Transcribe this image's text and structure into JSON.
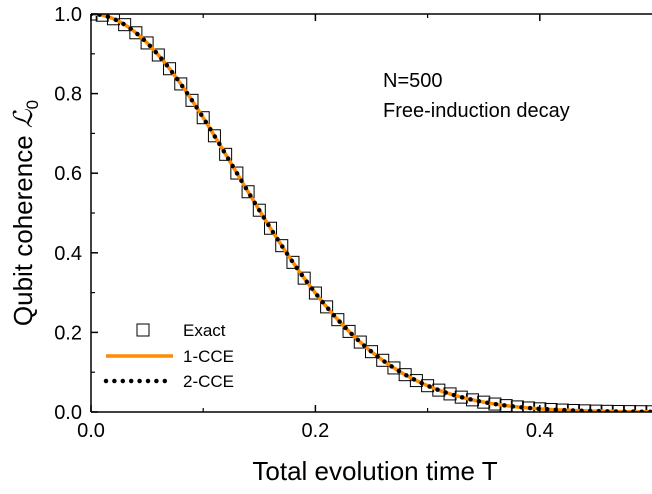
{
  "chart_data": {
    "type": "line",
    "xlabel": "Total evolution time T",
    "ylabel_text": "Qubit coherence ",
    "ylabel_symbol": "ℒ",
    "ylabel_subscript": "0",
    "xlim": [
      0,
      0.5
    ],
    "ylim": [
      0,
      1.0
    ],
    "x_ticks": [
      {
        "value": 0.0,
        "label": "0.0"
      },
      {
        "value": 0.2,
        "label": "0.2"
      },
      {
        "value": 0.4,
        "label": "0.4"
      }
    ],
    "y_ticks": [
      {
        "value": 0.0,
        "label": "0.0"
      },
      {
        "value": 0.2,
        "label": "0.2"
      },
      {
        "value": 0.4,
        "label": "0.4"
      },
      {
        "value": 0.6,
        "label": "0.6"
      },
      {
        "value": 0.8,
        "label": "0.8"
      },
      {
        "value": 1.0,
        "label": "1.0"
      }
    ],
    "annotations": [
      "N=500",
      "Free-induction decay"
    ],
    "legend_position": "bottom-left",
    "curve": {
      "form": "gaussian",
      "amplitude": 1.0,
      "width": 0.182
    },
    "series": [
      {
        "name": "Exact",
        "style": "open-square",
        "color": "#000000"
      },
      {
        "name": "1-CCE",
        "style": "line",
        "color": "#ff8c00"
      },
      {
        "name": "2-CCE",
        "style": "dotted",
        "color": "#000000"
      }
    ],
    "square_x_start": 0.0,
    "square_x_step": 0.01,
    "grid": false
  }
}
